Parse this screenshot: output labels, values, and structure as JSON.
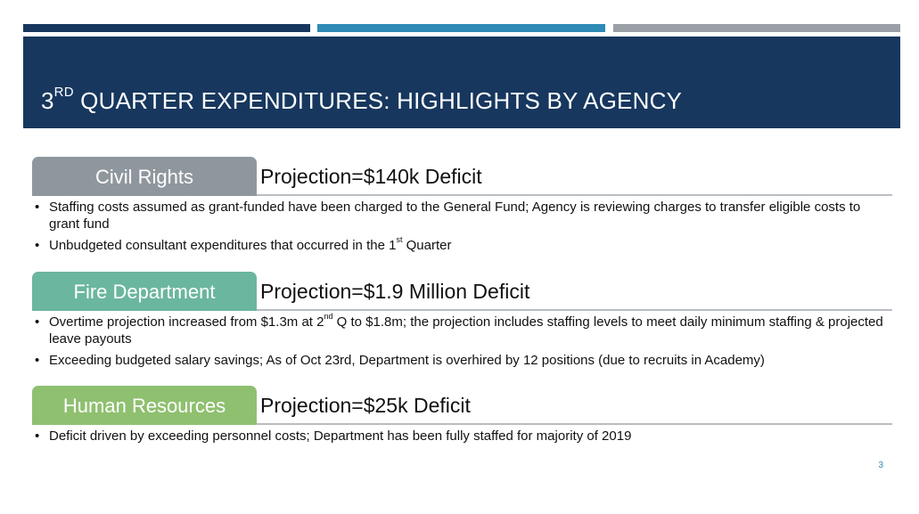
{
  "slide": {
    "title": {
      "prefix": "3",
      "superscript": "RD",
      "rest": " QUARTER EXPENDITURES: HIGHLIGHTS BY AGENCY"
    },
    "page_number": "3",
    "colors": {
      "header_band": "#17375e",
      "bar_blue": "#2e8bb5",
      "bar_gray": "#9aa0a6",
      "tab_civil_rights": "#8f979e",
      "tab_fire": "#6bb69e",
      "tab_hr": "#8fc070"
    }
  },
  "sections": [
    {
      "agency": "Civil Rights",
      "projection": "Projection=$140k Deficit",
      "bullets": [
        {
          "text": "Staffing costs assumed as grant-funded have been charged to the General Fund; Agency is reviewing charges to transfer eligible costs to grant fund"
        },
        {
          "before": "Unbudgeted consultant expenditures that occurred in the 1",
          "sup": "st",
          "after": " Quarter"
        }
      ]
    },
    {
      "agency": "Fire Department",
      "projection": "Projection=$1.9 Million Deficit",
      "bullets": [
        {
          "before": "Overtime projection increased from $1.3m at 2",
          "sup": "nd",
          "after": " Q to $1.8m; the projection includes staffing levels to meet daily minimum staffing & projected leave payouts"
        },
        {
          "text": "Exceeding budgeted salary savings; As of Oct 23rd, Department is overhired by 12 positions (due to recruits in Academy)"
        }
      ]
    },
    {
      "agency": "Human Resources",
      "projection": "Projection=$25k Deficit",
      "bullets": [
        {
          "text": "Deficit driven by exceeding personnel costs; Department has been fully staffed for majority of 2019"
        }
      ]
    }
  ]
}
